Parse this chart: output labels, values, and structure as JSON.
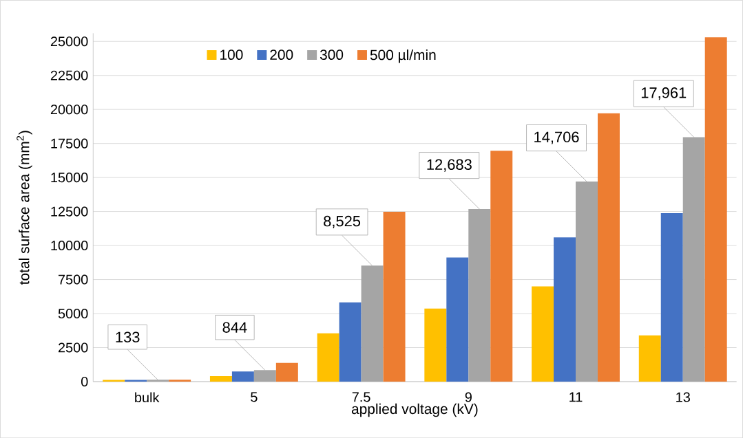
{
  "chart_data": {
    "type": "bar",
    "xlabel": "applied voltage (kV)",
    "ylabel": "total surface area (mm$^{2}$)",
    "categories": [
      "bulk",
      "5",
      "7.5",
      "9",
      "11",
      "13"
    ],
    "series": [
      {
        "name": "100",
        "color": "#ffc000",
        "values": [
          130,
          400,
          3550,
          5370,
          7000,
          3400
        ]
      },
      {
        "name": "200",
        "color": "#4472c4",
        "values": [
          130,
          740,
          5820,
          9120,
          10600,
          12380
        ]
      },
      {
        "name": "300",
        "color": "#a5a5a5",
        "values": [
          133,
          844,
          8525,
          12683,
          14706,
          17961
        ],
        "value_labels": [
          "133",
          "844",
          "8,525",
          "12,683",
          "14,706",
          "17,961"
        ]
      },
      {
        "name": "500 µl/min",
        "color": "#ed7d31",
        "values": [
          140,
          1380,
          12480,
          16960,
          19720,
          25300
        ]
      }
    ],
    "ylim": [
      0,
      25600
    ],
    "yticks": [
      0,
      2500,
      5000,
      7500,
      10000,
      12500,
      15000,
      17500,
      20000,
      22500,
      25000
    ],
    "grid": "y",
    "legend": "top left"
  }
}
